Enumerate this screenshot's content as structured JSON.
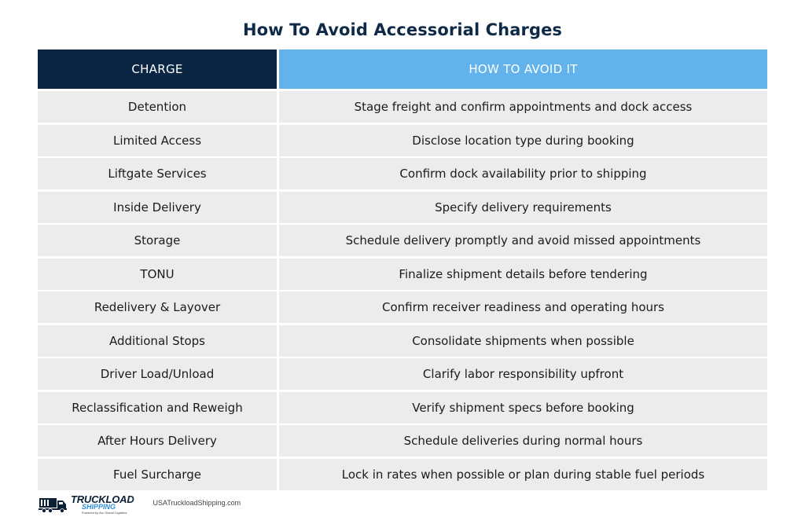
{
  "title": "How To Avoid Accessorial Charges",
  "table": {
    "headers": [
      "CHARGE",
      "HOW TO AVOID IT"
    ],
    "rows": [
      [
        "Detention",
        "Stage freight and confirm appointments and dock access"
      ],
      [
        "Limited Access",
        "Disclose location type during booking"
      ],
      [
        "Liftgate Services",
        "Confirm dock availability prior to shipping"
      ],
      [
        "Inside Delivery",
        "Specify delivery requirements"
      ],
      [
        "Storage",
        "Schedule delivery promptly and avoid missed appointments"
      ],
      [
        "TONU",
        "Finalize shipment details before tendering"
      ],
      [
        "Redelivery & Layover",
        "Confirm receiver readiness and operating hours"
      ],
      [
        "Additional Stops",
        "Consolidate shipments when possible"
      ],
      [
        "Driver Load/Unload",
        "Clarify labor responsibility upfront"
      ],
      [
        "Reclassification and Reweigh",
        "Verify shipment specs before booking"
      ],
      [
        "After Hours Delivery",
        "Schedule deliveries during normal hours"
      ],
      [
        "Fuel Surcharge",
        "Lock in rates when possible or plan during stable fuel periods"
      ]
    ]
  },
  "footer": {
    "logo_main": "TRUCKLOAD",
    "logo_sub": "SHIPPING",
    "logo_tag": "Powered by Arc Global Logistics",
    "logo_icon": "truck-icon",
    "website": "USATruckloadShipping.com"
  },
  "colors": {
    "header_dark": "#0b2643",
    "header_light": "#62b3ec",
    "row_bg": "#ececec",
    "title": "#0f2a47"
  }
}
